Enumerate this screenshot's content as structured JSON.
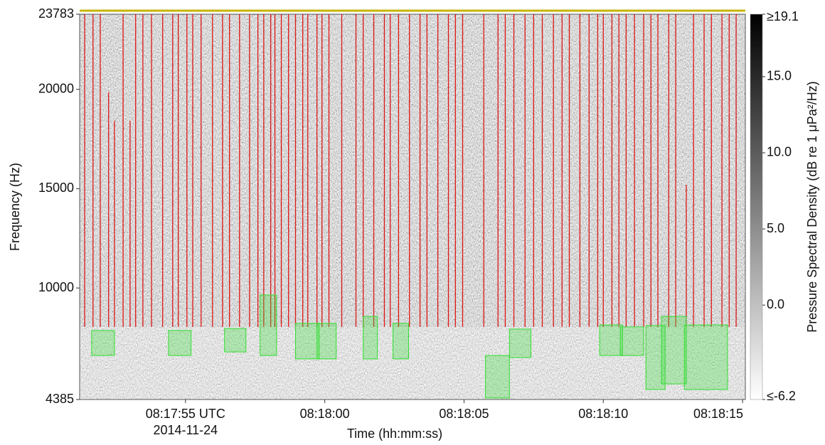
{
  "chart_data": {
    "type": "spectrogram",
    "x_label": "Time (hh:mm:ss)",
    "x_date_label": "2014-11-24",
    "y_label": "Frequency (Hz)",
    "colorbar_label": "Pressure Spectral Density (dB re 1 μPa²/Hz)",
    "xlim": [
      29871.2,
      29895.1
    ],
    "xticks": [
      {
        "value": 29875,
        "label": "08:17:55 UTC"
      },
      {
        "value": 29880,
        "label": "08:18:00"
      },
      {
        "value": 29885,
        "label": "08:18:05"
      },
      {
        "value": 29890,
        "label": "08:18:10"
      },
      {
        "value": 29895,
        "label": "08:18:15"
      }
    ],
    "ylim": [
      4385,
      23783
    ],
    "yticks": [
      4385,
      10000,
      15000,
      20000,
      23783
    ],
    "clim": [
      -6.2,
      19.1
    ],
    "cticks": [
      {
        "value": 19.1,
        "label": "≥19.1"
      },
      {
        "value": 15,
        "label": "15.0"
      },
      {
        "value": 10,
        "label": "10.0"
      },
      {
        "value": 5,
        "label": "5.0"
      },
      {
        "value": 0,
        "label": "0.0"
      },
      {
        "value": -6.2,
        "label": "≤-6.2"
      }
    ],
    "colormap": [
      "#ffffff",
      "#000000"
    ],
    "detection_color": "#e00000",
    "detection_floor": 8040,
    "detections": {
      "times": [
        29871.38,
        29871.68,
        29871.94,
        29872.24,
        29872.45,
        29872.76,
        29873.01,
        29873.21,
        29873.47,
        29873.78,
        29874.18,
        29874.54,
        29874.74,
        29875.05,
        29875.26,
        29875.56,
        29875.97,
        29876.33,
        29876.58,
        29876.94,
        29877.3,
        29877.6,
        29877.81,
        29878.06,
        29878.21,
        29878.44,
        29878.7,
        29878.95,
        29879.21,
        29879.39,
        29879.72,
        29879.9,
        29880.15,
        29880.61,
        29881.12,
        29881.38,
        29881.76,
        29882.14,
        29882.35,
        29882.65,
        29883.04,
        29883.42,
        29883.67,
        29884.06,
        29884.44,
        29884.69,
        29884.95,
        29885.71,
        29886.22,
        29886.48,
        29886.79,
        29887.19,
        29887.5,
        29887.81,
        29888.21,
        29888.52,
        29888.78,
        29889.16,
        29889.49,
        29889.8,
        29890.0,
        29890.31,
        29890.56,
        29890.82,
        29891.12,
        29891.45,
        29891.71,
        29891.96,
        29892.35,
        29892.6,
        29892.98,
        29893.24,
        29893.62,
        29893.88,
        29894.26,
        29894.52,
        29894.77
      ],
      "top": [
        23783,
        23783,
        23783,
        19850,
        18420,
        23783,
        18420,
        23783,
        23783,
        23783,
        23783,
        23783,
        23783,
        23783,
        23783,
        23783,
        23783,
        23783,
        23783,
        23783,
        23783,
        23783,
        23783,
        23783,
        23783,
        23783,
        23783,
        23783,
        23783,
        23783,
        23783,
        23783,
        23783,
        23783,
        23783,
        23783,
        23783,
        23783,
        23783,
        23783,
        23783,
        23783,
        23783,
        23783,
        23783,
        23783,
        23783,
        23783,
        23783,
        23783,
        23783,
        23783,
        23783,
        23783,
        23783,
        23783,
        23783,
        23783,
        23783,
        23783,
        23783,
        23783,
        23783,
        23783,
        23783,
        23783,
        23783,
        23783,
        23783,
        23783,
        15190,
        23783,
        23783,
        23783,
        23783,
        23783,
        23783
      ]
    },
    "box_color": "#33dd33",
    "boxes": [
      {
        "t": [
          29871.63,
          29872.45
        ],
        "f": [
          6600,
          7860
        ]
      },
      {
        "t": [
          29874.39,
          29875.2
        ],
        "f": [
          6600,
          7860
        ]
      },
      {
        "t": [
          29876.4,
          29877.17
        ],
        "f": [
          6780,
          7960
        ]
      },
      {
        "t": [
          29877.68,
          29878.27
        ],
        "f": [
          6600,
          9650
        ]
      },
      {
        "t": [
          29878.95,
          29879.8
        ],
        "f": [
          6430,
          8220
        ]
      },
      {
        "t": [
          29879.72,
          29880.41
        ],
        "f": [
          6430,
          8220
        ]
      },
      {
        "t": [
          29881.38,
          29881.89
        ],
        "f": [
          6430,
          8570
        ]
      },
      {
        "t": [
          29882.45,
          29883.01
        ],
        "f": [
          6430,
          8220
        ]
      },
      {
        "t": [
          29885.77,
          29886.63
        ],
        "f": [
          4460,
          6600
        ]
      },
      {
        "t": [
          29886.63,
          29887.4
        ],
        "f": [
          6500,
          7930
        ]
      },
      {
        "t": [
          29889.87,
          29890.69
        ],
        "f": [
          6600,
          8140
        ]
      },
      {
        "t": [
          29890.61,
          29891.45
        ],
        "f": [
          6600,
          8040
        ]
      },
      {
        "t": [
          29891.53,
          29892.22
        ],
        "f": [
          4890,
          8110
        ]
      },
      {
        "t": [
          29892.09,
          29892.98
        ],
        "f": [
          5170,
          8570
        ]
      },
      {
        "t": [
          29892.91,
          29894.46
        ],
        "f": [
          4890,
          8140
        ]
      }
    ]
  }
}
